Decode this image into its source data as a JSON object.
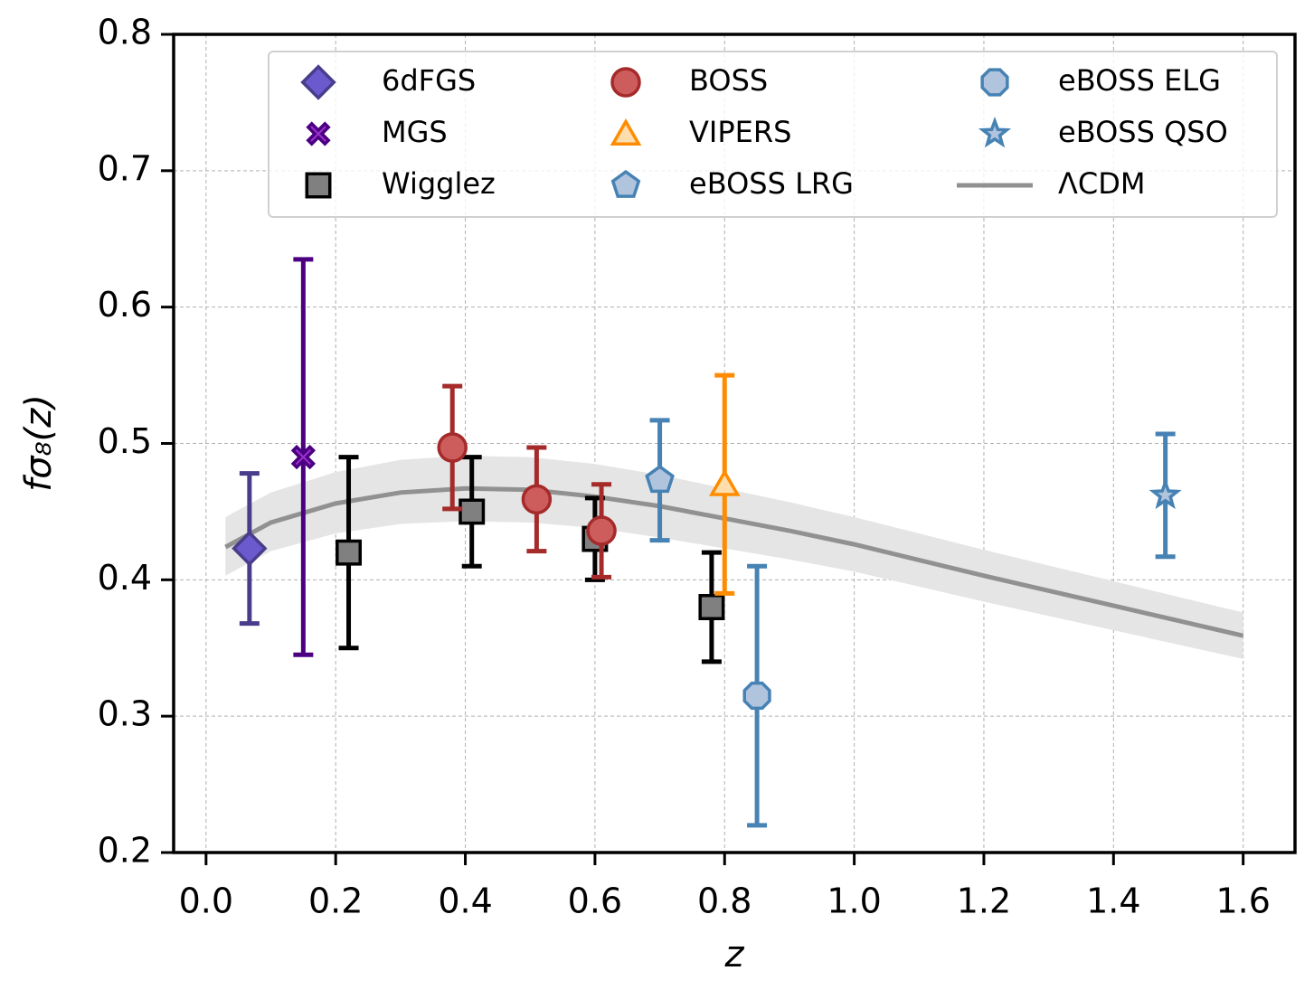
{
  "chart_data": {
    "type": "scatter",
    "xlabel": "z",
    "ylabel": "fσ₈(z)",
    "xlim": [
      -0.05,
      1.68
    ],
    "ylim": [
      0.2,
      0.8
    ],
    "xticks": [
      {
        "value": 0,
        "label": "0.0"
      },
      0.2,
      0.4,
      0.6,
      0.8,
      {
        "value": 1,
        "label": "1.0"
      },
      1.2,
      1.4,
      1.6
    ],
    "yticks": [
      0.2,
      0.3,
      0.4,
      0.5,
      0.6,
      0.7,
      0.8
    ],
    "grid": true,
    "legend": "upper right",
    "series": [
      {
        "name": "6dFGS",
        "marker": "diamond",
        "color": "#6a5acd",
        "edgecolor": "#483d8b",
        "x": [
          0.067
        ],
        "values": [
          0.423
        ],
        "errors": [
          0.055
        ]
      },
      {
        "name": "MGS",
        "marker": "x",
        "color": "#9932cc",
        "edgecolor": "#4b0082",
        "x": [
          0.15
        ],
        "values": [
          0.49
        ],
        "errors": [
          0.145
        ]
      },
      {
        "name": "Wigglez",
        "marker": "square",
        "color": "#808080",
        "edgecolor": "#000000",
        "x": [
          0.22,
          0.41,
          0.6,
          0.78
        ],
        "values": [
          0.42,
          0.45,
          0.43,
          0.38
        ],
        "errors": [
          0.07,
          0.04,
          0.03,
          0.04
        ]
      },
      {
        "name": "BOSS",
        "marker": "circle",
        "color": "#cd5c5c",
        "edgecolor": "#a52a2a",
        "x": [
          0.38,
          0.51,
          0.61
        ],
        "values": [
          0.497,
          0.459,
          0.436
        ],
        "errors": [
          0.045,
          0.038,
          0.034
        ]
      },
      {
        "name": "VIPERS",
        "marker": "triangle",
        "color": "#ffdead",
        "edgecolor": "#ff8c00",
        "x": [
          0.8
        ],
        "values": [
          0.47
        ],
        "errors": [
          0.08
        ]
      },
      {
        "name": "eBOSS LRG",
        "marker": "pentagon",
        "color": "#b0c4de",
        "edgecolor": "#4682b4",
        "x": [
          0.7
        ],
        "values": [
          0.473
        ],
        "errors": [
          0.044
        ]
      },
      {
        "name": "eBOSS ELG",
        "marker": "octagon",
        "color": "#b0c4de",
        "edgecolor": "#4682b4",
        "x": [
          0.85
        ],
        "values": [
          0.315
        ],
        "errors": [
          0.095
        ]
      },
      {
        "name": "eBOSS QSO",
        "marker": "star",
        "color": "#b0c4de",
        "edgecolor": "#4682b4",
        "x": [
          1.48
        ],
        "values": [
          0.462
        ],
        "errors": [
          0.045
        ]
      }
    ],
    "model": {
      "name": "ΛCDM",
      "color": "#919191",
      "band_color": "#e5e5e5",
      "x": [
        0.03,
        0.1,
        0.2,
        0.3,
        0.4,
        0.5,
        0.6,
        0.7,
        0.8,
        0.9,
        1.0,
        1.2,
        1.4,
        1.6
      ],
      "values": [
        0.424,
        0.442,
        0.456,
        0.464,
        0.467,
        0.466,
        0.461,
        0.454,
        0.445,
        0.436,
        0.426,
        0.403,
        0.381,
        0.359
      ],
      "upper": [
        0.446,
        0.464,
        0.479,
        0.488,
        0.491,
        0.49,
        0.485,
        0.477,
        0.467,
        0.457,
        0.446,
        0.422,
        0.399,
        0.376
      ],
      "lower": [
        0.403,
        0.421,
        0.434,
        0.441,
        0.443,
        0.442,
        0.438,
        0.431,
        0.423,
        0.415,
        0.406,
        0.384,
        0.363,
        0.342
      ]
    }
  }
}
